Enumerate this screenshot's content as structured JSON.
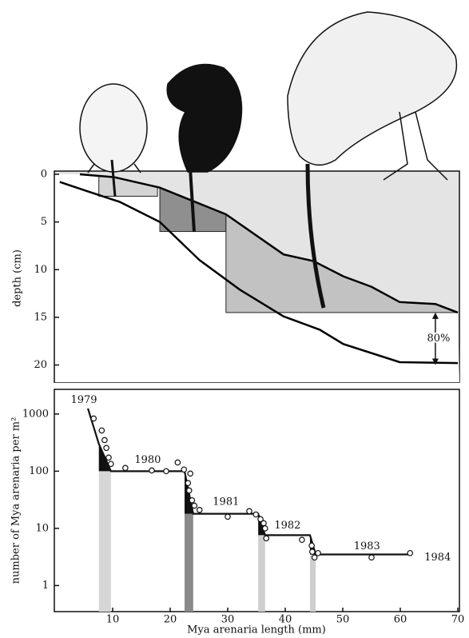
{
  "chart_data": [
    {
      "type": "depth-profile",
      "y_label": "depth (cm)",
      "xlim": [
        0,
        70
      ],
      "ylim": [
        0,
        21.8
      ],
      "yticks": [
        0,
        5,
        10,
        15,
        20
      ],
      "y_inverted": true,
      "background": "#e4e4e4",
      "lines": [
        {
          "x": [
            4.3,
            10.25,
            18.2,
            29.7,
            39.7,
            44.9,
            50.1,
            55,
            59.9,
            66.1,
            70
          ],
          "values": [
            0,
            0.3,
            1.4,
            4.2,
            8.4,
            9.1,
            10.7,
            11.8,
            13.4,
            13.6,
            14.5
          ],
          "color": "#000000"
        },
        {
          "x": [
            0.8,
            5.7,
            11.25,
            18.2,
            25.1,
            32.1,
            39.7,
            46,
            50.1,
            59.9,
            70
          ],
          "values": [
            0.8,
            1.8,
            2.9,
            5.0,
            9.0,
            12.1,
            14.9,
            16.3,
            17.8,
            19.7,
            19.8
          ],
          "color": "#000000"
        }
      ],
      "bands": [
        {
          "x": [
            7.6,
            17.8
          ],
          "values": [
            0,
            2.3
          ],
          "color": "#d4d4d4"
        },
        {
          "x": [
            18.2,
            29.7
          ],
          "values": [
            0,
            6
          ],
          "color": "#8f8f8f"
        },
        {
          "x": [
            29.7,
            70
          ],
          "values": [
            0,
            14.5
          ],
          "color": "#c2c2c2"
        }
      ],
      "annotation": {
        "text": "80%",
        "x": 66.1,
        "values": [
          14.5,
          20
        ]
      }
    },
    {
      "type": "scatter",
      "log_y": true,
      "x_label": "Mya arenaria length (mm)",
      "y_label": "number of Mya arenaria per m²",
      "xlim": [
        0,
        70
      ],
      "xticks": [
        10,
        20,
        30,
        40,
        50,
        60,
        70
      ],
      "ylim": [
        0.35,
        2700
      ],
      "yticks": [
        1,
        10,
        100,
        1000
      ],
      "points": {
        "x": [
          6.7,
          8.1,
          8.6,
          8.9,
          9.3,
          9.7,
          12.2,
          16.8,
          19.3,
          21.3,
          22.4,
          23.5,
          23.1,
          23.3,
          23.8,
          24.2,
          25.1,
          30,
          33.75,
          34.9,
          35.7,
          36.25,
          36.5,
          36.7,
          42.9,
          44.6,
          44.7,
          45.1,
          45.7,
          55,
          61.7
        ],
        "values": [
          835,
          516,
          350,
          255,
          173,
          134,
          114,
          103,
          100,
          142,
          107,
          91,
          62,
          46,
          31,
          25,
          21,
          16,
          20,
          17.5,
          14.5,
          12.3,
          10,
          6.7,
          6.3,
          5,
          3.9,
          3.1,
          3.7,
          3.1,
          3.7
        ]
      },
      "step_line": {
        "x": [
          5.7,
          7.6,
          9.7,
          22.5,
          24,
          35.3,
          36.5,
          44.3,
          45.3,
          61.7
        ],
        "values": [
          1250,
          300,
          100,
          100,
          18,
          18,
          7.6,
          7.6,
          3.5,
          3.5
        ]
      },
      "bars": [
        {
          "x": [
            7.6,
            9.7
          ],
          "value": 100,
          "color": "#d6d6d6"
        },
        {
          "x": [
            22.5,
            24
          ],
          "value": 18,
          "color": "#8a8a8a"
        },
        {
          "x": [
            35.3,
            36.5
          ],
          "value": 7.6,
          "color": "#cfcfcf"
        },
        {
          "x": [
            44.3,
            45.3
          ],
          "value": 3.5,
          "color": "#cfcfcf"
        }
      ],
      "year_labels": [
        {
          "text": "1979",
          "x": 5,
          "y": 1750
        },
        {
          "text": "1980",
          "x": 16.1,
          "y": 157
        },
        {
          "text": "1981",
          "x": 29.7,
          "y": 29
        },
        {
          "text": "1982",
          "x": 40.4,
          "y": 11.1
        },
        {
          "text": "1983",
          "x": 54.2,
          "y": 4.8
        },
        {
          "text": "1984",
          "x": 66.5,
          "y": 3.1
        }
      ]
    }
  ]
}
